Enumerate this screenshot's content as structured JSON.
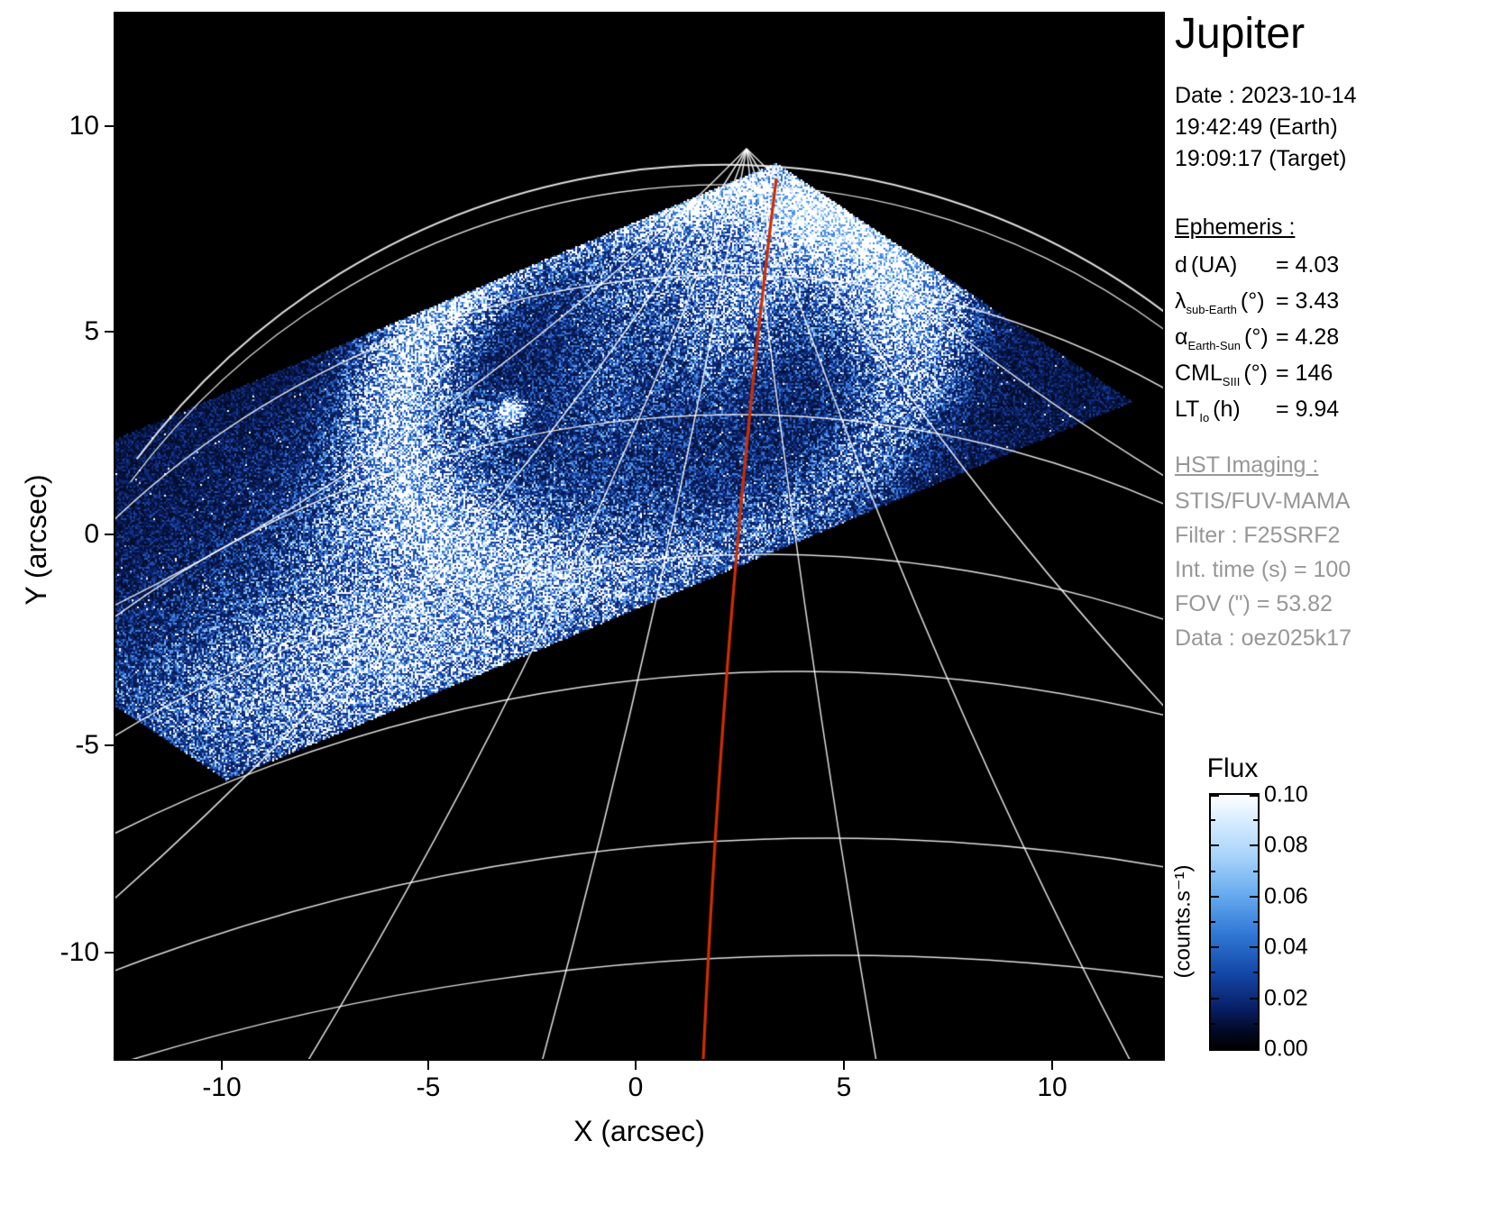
{
  "title": "Jupiter",
  "observation": {
    "date": "Date : 2023-10-14",
    "time_earth": "19:42:49 (Earth)",
    "time_target": "19:09:17 (Target)"
  },
  "ephemeris": {
    "heading": "Ephemeris :",
    "rows": [
      {
        "main": "d",
        "sub": "",
        "mid": "(UA)",
        "tail": "= 4.03"
      },
      {
        "main": "λ",
        "sub": "sub-Earth",
        "mid": "(°)",
        "tail": "= 3.43"
      },
      {
        "main": "α",
        "sub": "Earth-Sun",
        "mid": "(°)",
        "tail": "= 4.28"
      },
      {
        "main": "CML",
        "sub": "SIII",
        "mid": "(°)",
        "tail": "= 146"
      },
      {
        "main": "LT",
        "sub": "Io",
        "mid": "(h)",
        "tail": "= 9.94"
      }
    ]
  },
  "hst": {
    "heading": "HST Imaging :",
    "lines": [
      "STIS/FUV-MAMA",
      "Filter : F25SRF2",
      "Int. time (s) = 100",
      "FOV (\") = 53.82",
      "Data : oez025k17"
    ]
  },
  "colorbar": {
    "title": "Flux",
    "unit": "(counts.s⁻¹)",
    "ticks": [
      "0.10",
      "0.08",
      "0.06",
      "0.04",
      "0.02",
      "0.00"
    ]
  },
  "axes": {
    "xlabel": "X (arcsec)",
    "ylabel": "Y (arcsec)",
    "x_ticks": [
      "-10",
      "-5",
      "0",
      "5",
      "10"
    ],
    "y_ticks": [
      "10",
      "5",
      "0",
      "-5",
      "-10"
    ]
  },
  "colors": {
    "meridian_red": "#cf2e00",
    "grid_white": "#ffffff",
    "muted_text": "#979797",
    "background": "#000000"
  },
  "chart_data": {
    "type": "heatmap",
    "title": "Jupiter",
    "xlabel": "X (arcsec)",
    "ylabel": "Y (arcsec)",
    "xlim": [
      -12.5,
      12.7
    ],
    "ylim": [
      -12.7,
      12.6
    ],
    "x_ticks": [
      -10,
      -5,
      0,
      5,
      10
    ],
    "y_ticks": [
      -10,
      -5,
      0,
      5,
      10
    ],
    "grid": true,
    "legend": false,
    "colorbar": {
      "label": "Flux",
      "unit": "counts.s⁻¹",
      "min": 0.0,
      "max": 0.1,
      "ticks": [
        0.0,
        0.02,
        0.04,
        0.06,
        0.08,
        0.1
      ]
    },
    "ephemeris_values": {
      "d_UA": 4.03,
      "lambda_subEarth_deg": 3.43,
      "alpha_EarthSun_deg": 4.28,
      "CML_SIII_deg": 146,
      "LT_Io_h": 9.94
    },
    "description": "HST STIS/FUV-MAMA far-ultraviolet flux image of Jupiter's northern auroral oval shown as blue-white speckled emission inside a tilted rectangular detector field of view on a black sky, overlaid with a white planetocentric latitude-longitude grid and a red central-meridian line curving from top center to bottom center"
  }
}
